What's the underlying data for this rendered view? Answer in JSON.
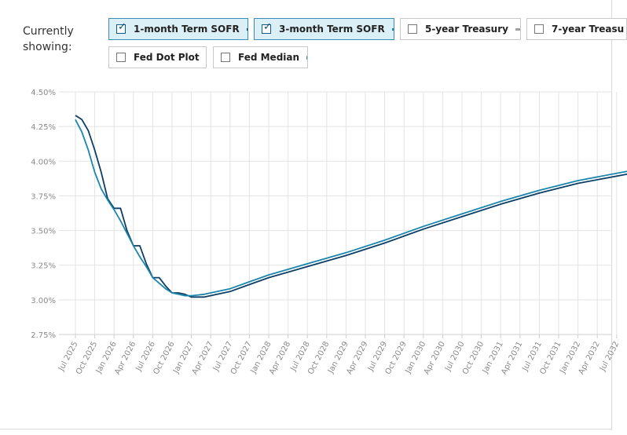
{
  "controls": {
    "showing_label_1": "Currently",
    "showing_label_2": "showing:",
    "toggles": [
      {
        "label": "1-month Term SOFR",
        "checked": true,
        "key": "line",
        "color": "#0d3f66"
      },
      {
        "label": "3-month Term SOFR",
        "checked": true,
        "key": "line",
        "color": "#1b86ab"
      },
      {
        "label": "5-year Treasury",
        "checked": false,
        "key": "line",
        "color": "#a0a0a0"
      },
      {
        "label": "7-year Treasu",
        "checked": false,
        "key": "line",
        "color": "#6a6a6a"
      },
      {
        "label": "Fed Dot Plot",
        "checked": false,
        "key": "dot",
        "color": "#777777"
      },
      {
        "label": "Fed Median",
        "checked": false,
        "key": "dot",
        "color": "#1b86ab"
      }
    ]
  },
  "chart_data": {
    "type": "line",
    "x_start": "2025-07",
    "x_end": "2032-09",
    "ylim": [
      2.75,
      4.5
    ],
    "yticks": [
      "4.50%",
      "4.25%",
      "4.00%",
      "3.75%",
      "3.50%",
      "3.25%",
      "3.00%",
      "2.75%"
    ],
    "xticks": [
      "Jul 2025",
      "Oct 2025",
      "Jan 2026",
      "Apr 2026",
      "Jul 2026",
      "Oct 2026",
      "Jan 2027",
      "Apr 2027",
      "Jul 2027",
      "Oct 2027",
      "Jan 2028",
      "Apr 2028",
      "Jul 2028",
      "Oct 2028",
      "Jan 2029",
      "Apr 2029",
      "Jul 2029",
      "Oct 2029",
      "Jan 2030",
      "Apr 2030",
      "Jul 2030",
      "Oct 2030",
      "Jan 2031",
      "Apr 2031",
      "Jul 2031",
      "Oct 2031",
      "Jan 2032",
      "Apr 2032",
      "Jul 2032"
    ],
    "grid": true,
    "series": [
      {
        "name": "1-month Term SOFR",
        "color": "#0d3f66",
        "points": [
          [
            "2025-07",
            4.33
          ],
          [
            "2025-08",
            4.3
          ],
          [
            "2025-09",
            4.22
          ],
          [
            "2025-10",
            4.08
          ],
          [
            "2025-11",
            3.92
          ],
          [
            "2025-12",
            3.73
          ],
          [
            "2026-01",
            3.66
          ],
          [
            "2026-02",
            3.66
          ],
          [
            "2026-03",
            3.5
          ],
          [
            "2026-04",
            3.39
          ],
          [
            "2026-05",
            3.39
          ],
          [
            "2026-06",
            3.26
          ],
          [
            "2026-07",
            3.16
          ],
          [
            "2026-08",
            3.16
          ],
          [
            "2026-09",
            3.1
          ],
          [
            "2026-10",
            3.05
          ],
          [
            "2026-11",
            3.05
          ],
          [
            "2026-12",
            3.04
          ],
          [
            "2027-01",
            3.02
          ],
          [
            "2027-03",
            3.02
          ],
          [
            "2027-07",
            3.06
          ],
          [
            "2027-10",
            3.11
          ],
          [
            "2028-01",
            3.16
          ],
          [
            "2028-07",
            3.24
          ],
          [
            "2029-01",
            3.32
          ],
          [
            "2029-07",
            3.41
          ],
          [
            "2030-01",
            3.51
          ],
          [
            "2030-07",
            3.6
          ],
          [
            "2031-01",
            3.69
          ],
          [
            "2031-07",
            3.77
          ],
          [
            "2032-01",
            3.84
          ],
          [
            "2032-09",
            3.91
          ]
        ]
      },
      {
        "name": "3-month Term SOFR",
        "color": "#1b86ab",
        "points": [
          [
            "2025-07",
            4.3
          ],
          [
            "2025-08",
            4.21
          ],
          [
            "2025-09",
            4.08
          ],
          [
            "2025-10",
            3.92
          ],
          [
            "2025-11",
            3.8
          ],
          [
            "2025-12",
            3.72
          ],
          [
            "2026-01",
            3.65
          ],
          [
            "2026-02",
            3.57
          ],
          [
            "2026-03",
            3.48
          ],
          [
            "2026-04",
            3.39
          ],
          [
            "2026-05",
            3.31
          ],
          [
            "2026-06",
            3.24
          ],
          [
            "2026-07",
            3.16
          ],
          [
            "2026-08",
            3.12
          ],
          [
            "2026-09",
            3.08
          ],
          [
            "2026-10",
            3.05
          ],
          [
            "2026-11",
            3.04
          ],
          [
            "2026-12",
            3.03
          ],
          [
            "2027-01",
            3.03
          ],
          [
            "2027-03",
            3.04
          ],
          [
            "2027-07",
            3.08
          ],
          [
            "2027-10",
            3.13
          ],
          [
            "2028-01",
            3.18
          ],
          [
            "2028-07",
            3.26
          ],
          [
            "2029-01",
            3.34
          ],
          [
            "2029-07",
            3.43
          ],
          [
            "2030-01",
            3.53
          ],
          [
            "2030-07",
            3.62
          ],
          [
            "2031-01",
            3.71
          ],
          [
            "2031-07",
            3.79
          ],
          [
            "2032-01",
            3.86
          ],
          [
            "2032-09",
            3.93
          ]
        ]
      }
    ]
  }
}
